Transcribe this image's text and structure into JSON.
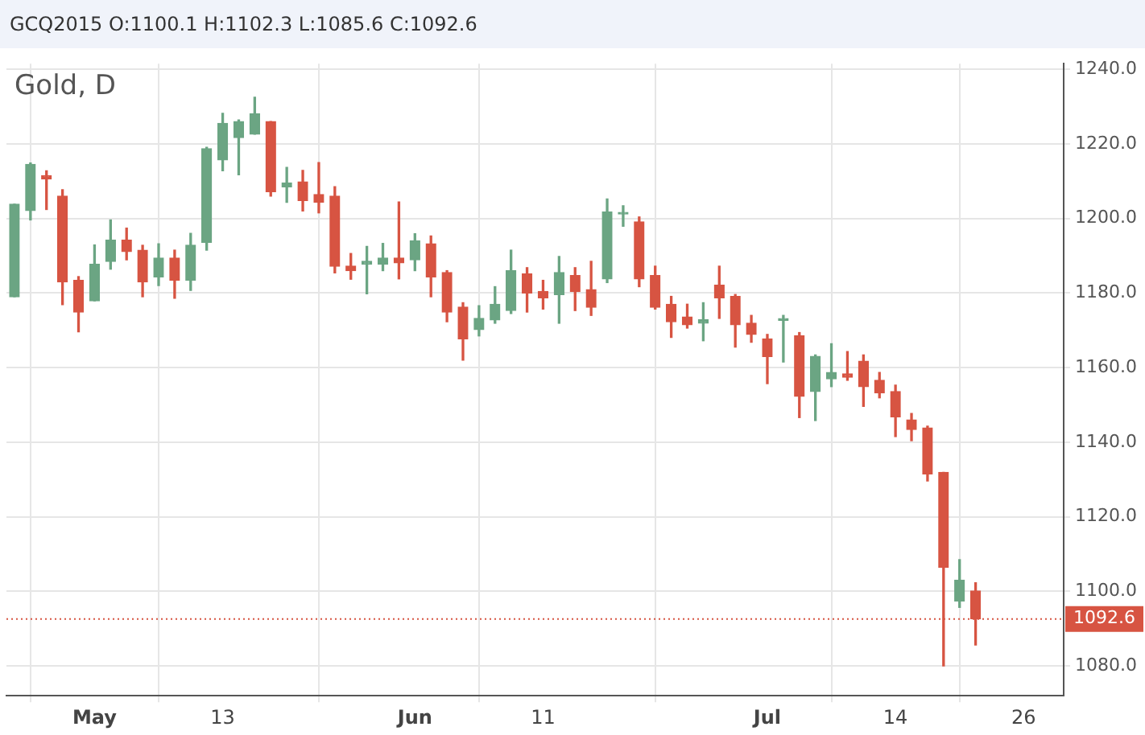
{
  "chart_data": {
    "type": "candlestick",
    "title": "GCQ2015 O:1100.1 H:1102.3 L:1085.6 C:1092.6",
    "subtitle": "Gold, D",
    "categories": [
      null,
      null,
      null,
      null,
      null,
      "May",
      null,
      null,
      null,
      null,
      null,
      null,
      null,
      "13",
      null,
      null,
      null,
      null,
      null,
      null,
      null,
      null,
      null,
      null,
      null,
      "Jun",
      null,
      null,
      null,
      null,
      null,
      null,
      null,
      "11",
      null,
      null,
      null,
      null,
      null,
      null,
      null,
      null,
      null,
      null,
      null,
      null,
      null,
      "Jul",
      null,
      null,
      null,
      null,
      null,
      null,
      null,
      "14",
      null,
      null,
      null,
      null,
      null,
      null,
      null,
      "26",
      null,
      null
    ],
    "ohlc": [
      [
        1179.0,
        1203.8,
        1179.0,
        1203.8
      ],
      [
        1202.1,
        1214.9,
        1199.6,
        1214.5
      ],
      [
        1211.5,
        1212.8,
        1202.4,
        1210.6
      ],
      [
        1206.0,
        1207.7,
        1176.9,
        1183.0
      ],
      [
        1183.4,
        1184.4,
        1169.6,
        1174.9
      ],
      [
        1177.9,
        1192.9,
        1177.9,
        1187.7
      ],
      [
        1188.5,
        1199.6,
        1186.4,
        1194.2
      ],
      [
        1194.2,
        1197.4,
        1188.9,
        1191.1
      ],
      [
        1191.5,
        1192.8,
        1179.0,
        1183.0
      ],
      [
        1184.3,
        1193.2,
        1182.0,
        1189.4
      ],
      [
        1189.4,
        1191.5,
        1178.6,
        1183.4
      ],
      [
        1183.4,
        1196.0,
        1180.7,
        1192.8
      ],
      [
        1193.6,
        1219.1,
        1191.5,
        1218.7
      ],
      [
        1215.7,
        1228.2,
        1212.8,
        1225.5
      ],
      [
        1221.7,
        1226.4,
        1211.7,
        1226.0
      ],
      [
        1222.6,
        1232.5,
        1222.6,
        1228.1
      ],
      [
        1226.0,
        1226.0,
        1206.0,
        1207.2
      ],
      [
        1208.5,
        1213.7,
        1204.3,
        1209.5
      ],
      [
        1209.8,
        1212.9,
        1202.0,
        1204.8
      ],
      [
        1206.4,
        1215.0,
        1201.5,
        1204.3
      ],
      [
        1206.0,
        1208.5,
        1185.4,
        1187.2
      ],
      [
        1187.2,
        1190.6,
        1183.7,
        1186.0
      ],
      [
        1187.7,
        1192.5,
        1179.8,
        1188.5
      ],
      [
        1187.7,
        1193.3,
        1186.0,
        1189.4
      ],
      [
        1189.4,
        1204.4,
        1183.8,
        1188.1
      ],
      [
        1188.9,
        1195.9,
        1186.0,
        1194.0
      ],
      [
        1193.2,
        1195.3,
        1179.0,
        1184.3
      ],
      [
        1185.5,
        1186.0,
        1172.3,
        1174.9
      ],
      [
        1176.2,
        1177.4,
        1162.0,
        1167.7
      ],
      [
        1170.2,
        1176.6,
        1168.5,
        1173.2
      ],
      [
        1172.8,
        1181.7,
        1171.9,
        1177.0
      ],
      [
        1175.3,
        1191.5,
        1174.5,
        1186.0
      ],
      [
        1185.1,
        1186.8,
        1174.9,
        1180.0
      ],
      [
        1180.4,
        1183.4,
        1175.7,
        1178.7
      ],
      [
        1179.6,
        1189.8,
        1171.9,
        1185.5
      ],
      [
        1184.7,
        1186.8,
        1175.3,
        1180.4
      ],
      [
        1180.9,
        1188.5,
        1174.0,
        1176.2
      ],
      [
        1183.8,
        1205.2,
        1182.8,
        1201.7
      ],
      [
        1201.2,
        1203.4,
        1197.9,
        1201.4
      ],
      [
        1199.1,
        1200.4,
        1181.7,
        1183.8
      ],
      [
        1184.7,
        1187.2,
        1175.7,
        1176.2
      ],
      [
        1177.0,
        1179.1,
        1168.1,
        1172.3
      ],
      [
        1173.6,
        1177.0,
        1170.6,
        1171.5
      ],
      [
        1171.9,
        1177.4,
        1167.2,
        1172.8
      ],
      [
        1182.1,
        1187.2,
        1173.2,
        1178.7
      ],
      [
        1179.1,
        1179.6,
        1165.5,
        1171.5
      ],
      [
        1171.9,
        1174.0,
        1166.8,
        1168.9
      ],
      [
        1167.7,
        1168.9,
        1155.7,
        1163.0
      ],
      [
        1172.7,
        1174.0,
        1161.5,
        1172.9
      ],
      [
        1168.5,
        1169.4,
        1146.6,
        1152.3
      ],
      [
        1153.6,
        1163.4,
        1145.8,
        1163.0
      ],
      [
        1157.0,
        1166.4,
        1154.9,
        1158.7
      ],
      [
        1158.3,
        1164.3,
        1156.6,
        1157.4
      ],
      [
        1161.7,
        1163.4,
        1149.6,
        1154.9
      ],
      [
        1156.6,
        1158.7,
        1151.9,
        1153.2
      ],
      [
        1153.6,
        1155.3,
        1141.5,
        1146.8
      ],
      [
        1146.0,
        1147.7,
        1140.4,
        1143.4
      ],
      [
        1143.8,
        1144.3,
        1129.6,
        1131.5
      ],
      [
        1131.9,
        1131.9,
        1080.0,
        1106.4
      ],
      [
        1097.4,
        1108.5,
        1095.7,
        1103.0
      ],
      [
        1100.1,
        1102.3,
        1085.6,
        1092.6
      ],
      null,
      null,
      null,
      null,
      null
    ],
    "colors": [
      "#6ba583",
      "#6ba583",
      "#d75442",
      "#d75442",
      "#d75442",
      "#6ba583",
      "#6ba583",
      "#d75442",
      "#d75442",
      "#6ba583",
      "#d75442",
      "#6ba583",
      "#6ba583",
      "#6ba583",
      "#6ba583",
      "#6ba583",
      "#d75442",
      "#6ba583",
      "#d75442",
      "#d75442",
      "#d75442",
      "#d75442",
      "#6ba583",
      "#6ba583",
      "#d75442",
      "#6ba583",
      "#d75442",
      "#d75442",
      "#d75442",
      "#6ba583",
      "#6ba583",
      "#6ba583",
      "#d75442",
      "#d75442",
      "#6ba583",
      "#d75442",
      "#d75442",
      "#6ba583",
      "#6ba583",
      "#d75442",
      "#d75442",
      "#d75442",
      "#d75442",
      "#6ba583",
      "#d75442",
      "#d75442",
      "#d75442",
      "#d75442",
      "#6ba583",
      "#d75442",
      "#6ba583",
      "#6ba583",
      "#d75442",
      "#d75442",
      "#d75442",
      "#d75442",
      "#d75442",
      "#d75442",
      "#d75442",
      "#6ba583",
      "#d75442",
      null,
      null,
      null,
      null,
      null
    ],
    "ylim": [
      1072,
      1241.5
    ],
    "yticks": [
      {
        "value": 1080,
        "label": "1080.0"
      },
      {
        "value": 1100,
        "label": "1100.0"
      },
      {
        "value": 1120,
        "label": "1120.0"
      },
      {
        "value": 1140,
        "label": "1140.0"
      },
      {
        "value": 1160,
        "label": "1160.0"
      },
      {
        "value": 1180,
        "label": "1180.0"
      },
      {
        "value": 1200,
        "label": "1200.0"
      },
      {
        "value": 1220,
        "label": "1220.0"
      },
      {
        "value": 1240,
        "label": "1240.0"
      }
    ],
    "ref_lines": [
      {
        "axis": "y",
        "value": 1092.6,
        "label": "1092.6",
        "color": "#d75442",
        "line_style": "dotted"
      }
    ],
    "grid": true
  }
}
